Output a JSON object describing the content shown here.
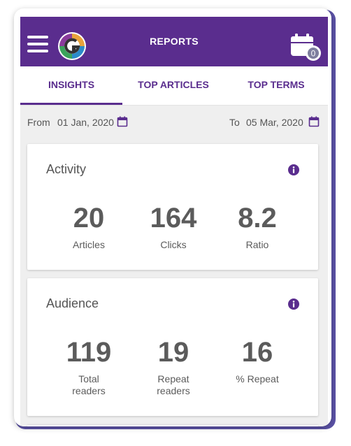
{
  "header": {
    "title": "REPORTS",
    "menu_icon": "hamburger-menu-icon",
    "logo_icon": "app-logo",
    "calendar_icon": "calendar-icon",
    "calendar_badge": "0",
    "color": "#5a2d8e"
  },
  "tabs": [
    {
      "label": "INSIGHTS",
      "active": true
    },
    {
      "label": "TOP ARTICLES",
      "active": false
    },
    {
      "label": "TOP TERMS",
      "active": false
    }
  ],
  "date_range": {
    "from_label": "From",
    "from_value": "01 Jan, 2020",
    "to_label": "To",
    "to_value": "05 Mar, 2020"
  },
  "activity": {
    "title": "Activity",
    "stats": [
      {
        "value": "20",
        "label": "Articles"
      },
      {
        "value": "164",
        "label": "Clicks"
      },
      {
        "value": "8.2",
        "label": "Ratio"
      }
    ]
  },
  "audience": {
    "title": "Audience",
    "stats": [
      {
        "value": "119",
        "label": "Total readers"
      },
      {
        "value": "19",
        "label": "Repeat readers"
      },
      {
        "value": "16",
        "label": "% Repeat"
      }
    ]
  }
}
